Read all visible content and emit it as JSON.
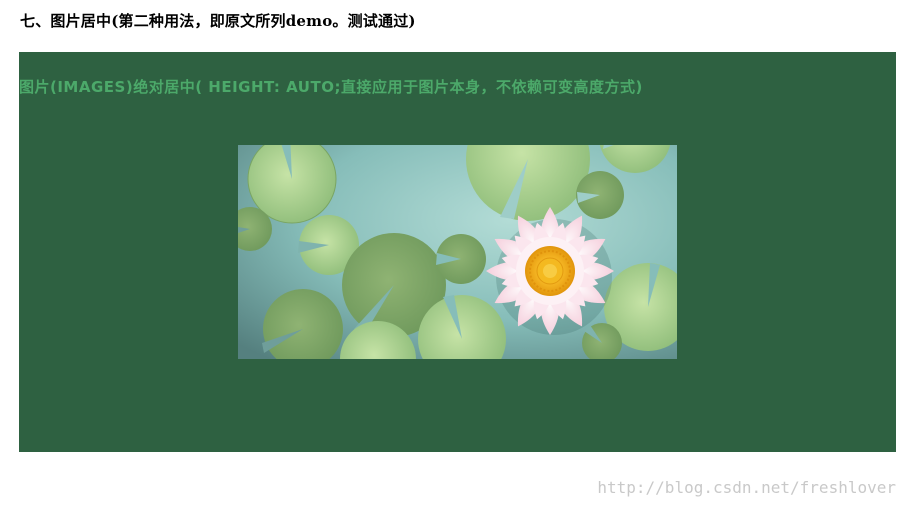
{
  "page": {
    "title": "七、图片居中(第二种用法，即原文所列demo。测试通过)"
  },
  "demo": {
    "heading": "图片(IMAGES)绝对居中( HEIGHT: AUTO;直接应用于图片本身，不依赖可变高度方式)",
    "panel_color": "#2e6141",
    "heading_color": "#4ca96a"
  },
  "image": {
    "subject": "lotus-flower-on-lily-pads",
    "colors": {
      "water": "#8ec3bf",
      "lily_pad": "#7fa86a",
      "petals": "#f7dbe4",
      "flower_center": "#f3b21a"
    }
  },
  "watermark": {
    "text": "http://blog.csdn.net/freshlover"
  }
}
